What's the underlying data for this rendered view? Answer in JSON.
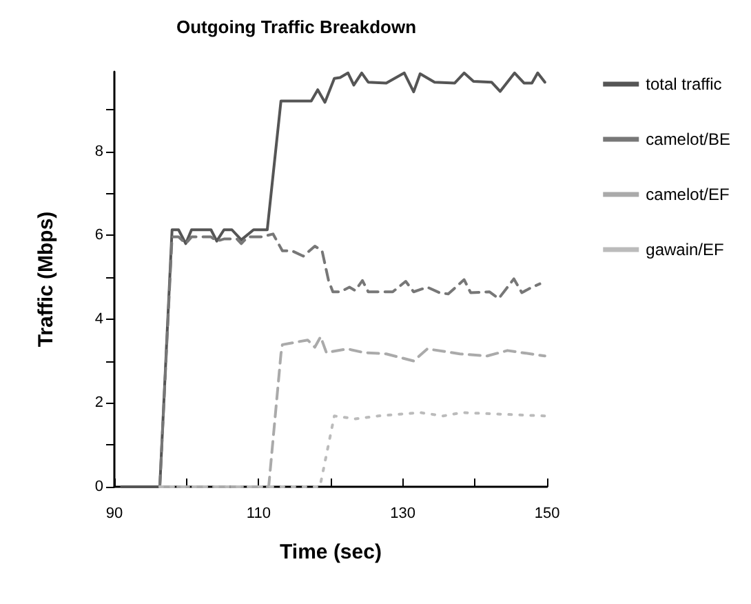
{
  "chart_data": {
    "type": "line",
    "title": "Outgoing Traffic Breakdown",
    "xlabel": "Time (sec)",
    "ylabel": "Traffic (Mbps)",
    "xlim": [
      90,
      150
    ],
    "ylim": [
      0,
      9.9
    ],
    "xticks": [
      90,
      {
        "value": 100,
        "label": null
      },
      110,
      {
        "value": 120,
        "label": null
      },
      130,
      {
        "value": 140,
        "label": null
      },
      150
    ],
    "yticks": [
      0,
      {
        "value": 1,
        "label": null
      },
      2,
      {
        "value": 3,
        "label": null
      },
      4,
      {
        "value": 5,
        "label": null
      },
      6,
      {
        "value": 7,
        "label": null
      },
      8,
      {
        "value": 9,
        "label": null
      }
    ],
    "grid": false,
    "legend": "top right",
    "marker": "none",
    "series": [
      {
        "name": "total traffic",
        "color": "#555555",
        "line_style": "solid",
        "x": [
          91,
          96.3,
          98,
          98.9,
          99.9,
          100.7,
          103.4,
          104.2,
          105.2,
          106.3,
          107.6,
          109.3,
          111.2,
          113.1,
          117.3,
          118.2,
          119.2,
          120.5,
          121.3,
          122.4,
          123.2,
          124.3,
          125.2,
          127.7,
          130.2,
          131.5,
          132.4,
          134.4,
          137.2,
          138.5,
          139.8,
          142.3,
          143.5,
          145.5,
          146.8,
          147.9,
          148.7,
          149.7
        ],
        "values": [
          0,
          0,
          6.13,
          6.13,
          5.8,
          6.13,
          6.13,
          5.86,
          6.13,
          6.13,
          5.89,
          6.13,
          6.13,
          9.2,
          9.2,
          9.47,
          9.17,
          9.74,
          9.76,
          9.87,
          9.58,
          9.87,
          9.65,
          9.63,
          9.87,
          9.42,
          9.85,
          9.65,
          9.63,
          9.87,
          9.67,
          9.65,
          9.43,
          9.87,
          9.63,
          9.63,
          9.87,
          9.65
        ]
      },
      {
        "name": "camelot/BE",
        "color": "#777777",
        "line_style": "dashed",
        "x": [
          96.3,
          98,
          98.9,
          99.9,
          100.7,
          103.4,
          104.2,
          105.2,
          107,
          107.6,
          108.5,
          110.4,
          112,
          113.3,
          114.6,
          116.2,
          117.8,
          118.8,
          119.7,
          120.3,
          121.3,
          122.6,
          123.4,
          124.4,
          125.2,
          127.3,
          128.6,
          130.4,
          131.5,
          133.4,
          135.2,
          136.3,
          138.5,
          139.4,
          142,
          143.3,
          145.4,
          146.5,
          147.9,
          149
        ],
        "values": [
          0,
          5.96,
          5.96,
          5.8,
          5.96,
          5.96,
          5.86,
          5.91,
          5.91,
          5.8,
          5.96,
          5.96,
          6.03,
          5.63,
          5.63,
          5.5,
          5.74,
          5.63,
          4.92,
          4.65,
          4.65,
          4.76,
          4.68,
          4.92,
          4.65,
          4.65,
          4.65,
          4.9,
          4.65,
          4.76,
          4.62,
          4.6,
          4.94,
          4.63,
          4.65,
          4.49,
          4.96,
          4.63,
          4.76,
          4.84
        ]
      },
      {
        "name": "camelot/EF",
        "color": "#aaaaaa",
        "line_style": "dashed",
        "x": [
          96.3,
          111.4,
          113.1,
          113.3,
          116.8,
          117.8,
          118.6,
          119.4,
          122.3,
          124.6,
          127.7,
          131.5,
          133.4,
          137.9,
          141.7,
          144.5,
          149.7
        ],
        "values": [
          0,
          0,
          3.17,
          3.39,
          3.5,
          3.33,
          3.58,
          3.2,
          3.29,
          3.2,
          3.17,
          3.0,
          3.29,
          3.17,
          3.12,
          3.25,
          3.12
        ]
      },
      {
        "name": "gawain/EF",
        "color": "#bbbbbb",
        "line_style": "dotted",
        "x": [
          96.3,
          118.5,
          120.5,
          123.4,
          126.6,
          132.4,
          135.6,
          138.2,
          149.7
        ],
        "values": [
          0,
          0,
          1.69,
          1.62,
          1.69,
          1.77,
          1.69,
          1.77,
          1.69
        ]
      }
    ]
  }
}
